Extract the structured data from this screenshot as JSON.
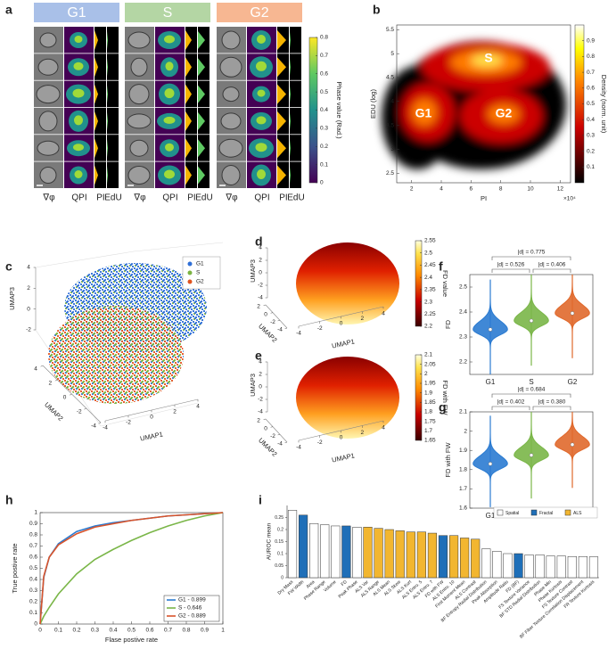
{
  "panel_labels": [
    "a",
    "b",
    "c",
    "d",
    "e",
    "f",
    "g",
    "h",
    "i"
  ],
  "panel_a": {
    "phases": [
      "G1",
      "S",
      "G2"
    ],
    "phase_colors": [
      "#a9c0e8",
      "#b4d6a4",
      "#f7b792"
    ],
    "channels": [
      "∇φ",
      "QPI",
      "PI",
      "EdU"
    ],
    "colorbar": {
      "label": "Phase value (Rad.)",
      "lim": [
        0,
        0.8
      ],
      "ticks": [
        0,
        0.1,
        0.2,
        0.3,
        0.4,
        0.5,
        0.6,
        0.7,
        0.8
      ]
    }
  },
  "chart_data": [
    {
      "type": "density",
      "xlabel": "PI",
      "ylabel": "EDU (log)",
      "x_multiplier": "×10⁴",
      "xlim": [
        1,
        12.7
      ],
      "xticks": [
        2,
        4,
        6,
        8,
        10,
        12
      ],
      "ylim": [
        2.3,
        5.6
      ],
      "yticks": [
        2.5,
        3,
        3.5,
        4,
        4.5,
        5,
        5.5
      ],
      "region_labels": [
        "G1",
        "S",
        "G2"
      ],
      "colorbar": {
        "label": "Density (norm. unit)",
        "lim": [
          0,
          1
        ],
        "ticks": [
          0.1,
          0.2,
          0.3,
          0.4,
          0.5,
          0.6,
          0.7,
          0.8,
          0.9
        ]
      }
    },
    {
      "type": "scatter3d",
      "xlabel": "UMAP1",
      "ylabel": "UMAP2",
      "zlabel": "UMAP3",
      "xlim": [
        -4,
        4
      ],
      "xticks": [
        -4,
        -2,
        0,
        2,
        4
      ],
      "ylim": [
        -4,
        4
      ],
      "yticks": [
        -4,
        -2,
        0,
        2,
        4
      ],
      "zlim": [
        -2,
        4
      ],
      "zticks": [
        -2,
        0,
        2,
        4
      ],
      "series": [
        {
          "name": "G1",
          "color": "#2f6fd6"
        },
        {
          "name": "S",
          "color": "#7cb342"
        },
        {
          "name": "G2",
          "color": "#e0531f"
        }
      ]
    },
    {
      "type": "scatter3d",
      "xlabel": "UMAP1",
      "ylabel": "UMAP2",
      "zlabel": "UMAP3",
      "xlim": [
        -4,
        4
      ],
      "xticks": [
        -4,
        -2,
        0,
        2,
        4
      ],
      "ylim": [
        -4,
        2
      ],
      "yticks": [
        -4,
        -2,
        0,
        2
      ],
      "zlim": [
        -4,
        4
      ],
      "zticks": [
        -4,
        -2,
        0,
        2,
        4
      ],
      "colorbar": {
        "label": "FD value",
        "lim": [
          2.2,
          2.55
        ],
        "ticks": [
          2.2,
          2.25,
          2.3,
          2.35,
          2.4,
          2.45,
          2.5,
          2.55
        ]
      }
    },
    {
      "type": "scatter3d",
      "xlabel": "UMAP1",
      "ylabel": "UMAP2",
      "zlabel": "UMAP3",
      "xlim": [
        -4,
        4
      ],
      "xticks": [
        -4,
        -2,
        0,
        2,
        4
      ],
      "ylim": [
        -4,
        2
      ],
      "yticks": [
        -4,
        -2,
        0,
        2
      ],
      "zlim": [
        -4,
        4
      ],
      "zticks": [
        -4,
        -2,
        0,
        2,
        4
      ],
      "colorbar": {
        "label": "FD with FW",
        "lim": [
          1.65,
          2.1
        ],
        "ticks": [
          1.65,
          1.7,
          1.75,
          1.8,
          1.85,
          1.9,
          1.95,
          2,
          2.05,
          2.1
        ]
      }
    },
    {
      "type": "violin",
      "ylabel": "FD",
      "categories": [
        "G1",
        "S",
        "G2"
      ],
      "colors": [
        "#2b7bd1",
        "#7ab648",
        "#e0692c"
      ],
      "values": [
        2.33,
        2.365,
        2.395
      ],
      "ylim": [
        2.15,
        2.55
      ],
      "yticks": [
        2.2,
        2.3,
        2.4,
        2.5
      ],
      "annotations": [
        "|d| = 0.526",
        "|d| = 0.406",
        "|d| = 0.775"
      ]
    },
    {
      "type": "violin",
      "ylabel": "FD with FW",
      "categories": [
        "G1",
        "S",
        "G2"
      ],
      "colors": [
        "#2b7bd1",
        "#7ab648",
        "#e0692c"
      ],
      "values": [
        1.83,
        1.875,
        1.93
      ],
      "ylim": [
        1.6,
        2.1
      ],
      "yticks": [
        1.6,
        1.7,
        1.8,
        1.9,
        2,
        2.1
      ],
      "annotations": [
        "|d| = 0.402",
        "|d| = 0.380",
        "|d| = 0.684"
      ]
    },
    {
      "type": "line",
      "xlabel": "Flase postive rate",
      "ylabel": "True postive rate",
      "x": [
        0,
        0.02,
        0.05,
        0.1,
        0.2,
        0.3,
        0.4,
        0.5,
        0.6,
        0.7,
        0.8,
        0.9,
        1
      ],
      "series": [
        {
          "name": "G1 - 0.899",
          "color": "#2b7bd1",
          "values": [
            0,
            0.42,
            0.6,
            0.72,
            0.83,
            0.88,
            0.91,
            0.93,
            0.95,
            0.97,
            0.98,
            0.99,
            1
          ]
        },
        {
          "name": "S - 0.646",
          "color": "#7ab648",
          "values": [
            0,
            0.07,
            0.15,
            0.27,
            0.45,
            0.58,
            0.67,
            0.75,
            0.82,
            0.88,
            0.93,
            0.97,
            1
          ]
        },
        {
          "name": "G2 - 0.889",
          "color": "#d9542b",
          "values": [
            0,
            0.43,
            0.6,
            0.71,
            0.81,
            0.87,
            0.9,
            0.93,
            0.95,
            0.97,
            0.98,
            0.99,
            1
          ]
        }
      ],
      "xlim": [
        0,
        1
      ],
      "ylim": [
        0,
        1
      ],
      "xticks": [
        0,
        0.1,
        0.2,
        0.3,
        0.4,
        0.5,
        0.6,
        0.7,
        0.8,
        0.9,
        1
      ],
      "yticks": [
        0,
        0.1,
        0.2,
        0.3,
        0.4,
        0.5,
        0.6,
        0.7,
        0.8,
        0.9,
        1
      ],
      "legend": "lower right"
    },
    {
      "type": "bar",
      "ylabel": "AUROC mean",
      "categories": [
        "Dry Mass",
        "FW Width",
        "Area",
        "Phase Range",
        "Volume",
        "FD",
        "Peak Phase",
        "ALS Var",
        "ALS Range",
        "ALS Mean",
        "ALS Skew",
        "ALS Kurt",
        "ALS Entro. 5",
        "ALS Entro. 7",
        "FD with FW",
        "ALS Entro. 10",
        "First Moment Mean",
        "ALS Contrast",
        "BF Entropy Radial Distribution",
        "Peak Absorption",
        "Amplitude Ratio",
        "FD (BF)",
        "FS Texture Variance",
        "BF STD Radial Distribution",
        "Phase Min",
        "Phase Kurtosis",
        "FS Texture Contrast",
        "BF Fiber Texture Correlation Displacement",
        "FR Texture Kurtosis"
      ],
      "series": [
        {
          "name": "Spatial",
          "color": "#ffffff",
          "values": [
            0.28,
            null,
            0.225,
            0.22,
            0.215,
            null,
            0.21,
            null,
            null,
            null,
            null,
            null,
            null,
            null,
            null,
            null,
            null,
            null,
            0.12,
            0.11,
            0.1,
            null,
            0.095,
            0.095,
            0.09,
            0.09,
            0.088,
            0.088,
            0.087
          ]
        },
        {
          "name": "Fractal",
          "color": "#1f6fb8",
          "values": [
            null,
            0.26,
            null,
            null,
            null,
            0.215,
            null,
            null,
            null,
            null,
            null,
            null,
            null,
            null,
            0.175,
            null,
            null,
            null,
            null,
            null,
            null,
            0.1,
            null,
            null,
            null,
            null,
            null,
            null,
            null
          ]
        },
        {
          "name": "ALS",
          "color": "#f2b630",
          "values": [
            null,
            null,
            null,
            null,
            null,
            null,
            null,
            0.21,
            0.205,
            0.2,
            0.195,
            0.19,
            0.19,
            0.185,
            null,
            0.175,
            0.165,
            0.16,
            null,
            null,
            null,
            null,
            null,
            null,
            null,
            null,
            null,
            null,
            null
          ]
        }
      ],
      "ylim": [
        0,
        0.3
      ],
      "yticks": [
        0,
        0.05,
        0.1,
        0.15,
        0.2,
        0.25
      ],
      "legend": "upper right"
    }
  ]
}
